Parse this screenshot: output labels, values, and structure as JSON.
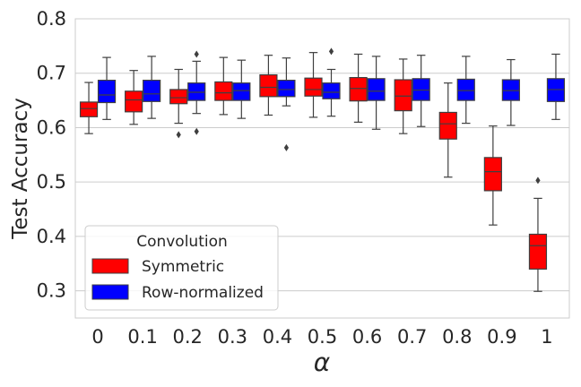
{
  "chart_data": {
    "type": "boxplot",
    "title": "",
    "xlabel": "α",
    "ylabel": "Test Accuracy",
    "ylim": [
      0.25,
      0.8
    ],
    "yticks": [
      0.3,
      0.4,
      0.5,
      0.6,
      0.7,
      0.8
    ],
    "ytick_labels": [
      "0.3",
      "0.4",
      "0.5",
      "0.6",
      "0.7",
      "0.8"
    ],
    "grid": "horizontal",
    "categories": [
      "0",
      "0.1",
      "0.2",
      "0.3",
      "0.4",
      "0.5",
      "0.6",
      "0.7",
      "0.8",
      "0.9",
      "1"
    ],
    "legend": {
      "title": "Convolution",
      "placement": "lower-left"
    },
    "series": [
      {
        "name": "Symmetric",
        "color": "#ff0000",
        "boxes": [
          {
            "category": "0",
            "whislo": 0.589,
            "q1": 0.62,
            "med": 0.635,
            "q3": 0.647,
            "whishi": 0.683,
            "fliers": []
          },
          {
            "category": "0.1",
            "whislo": 0.606,
            "q1": 0.629,
            "med": 0.651,
            "q3": 0.667,
            "whishi": 0.705,
            "fliers": []
          },
          {
            "category": "0.2",
            "whislo": 0.608,
            "q1": 0.644,
            "med": 0.655,
            "q3": 0.67,
            "whishi": 0.707,
            "fliers": [
              0.587
            ]
          },
          {
            "category": "0.3",
            "whislo": 0.624,
            "q1": 0.65,
            "med": 0.664,
            "q3": 0.684,
            "whishi": 0.729,
            "fliers": []
          },
          {
            "category": "0.4",
            "whislo": 0.623,
            "q1": 0.657,
            "med": 0.674,
            "q3": 0.697,
            "whishi": 0.733,
            "fliers": []
          },
          {
            "category": "0.5",
            "whislo": 0.619,
            "q1": 0.658,
            "med": 0.67,
            "q3": 0.691,
            "whishi": 0.738,
            "fliers": []
          },
          {
            "category": "0.6",
            "whislo": 0.61,
            "q1": 0.649,
            "med": 0.672,
            "q3": 0.692,
            "whishi": 0.735,
            "fliers": []
          },
          {
            "category": "0.7",
            "whislo": 0.589,
            "q1": 0.631,
            "med": 0.658,
            "q3": 0.688,
            "whishi": 0.726,
            "fliers": []
          },
          {
            "category": "0.8",
            "whislo": 0.509,
            "q1": 0.579,
            "med": 0.607,
            "q3": 0.628,
            "whishi": 0.682,
            "fliers": []
          },
          {
            "category": "0.9",
            "whislo": 0.421,
            "q1": 0.484,
            "med": 0.519,
            "q3": 0.545,
            "whishi": 0.603,
            "fliers": []
          },
          {
            "category": "1",
            "whislo": 0.299,
            "q1": 0.34,
            "med": 0.383,
            "q3": 0.404,
            "whishi": 0.47,
            "fliers": [
              0.503
            ]
          }
        ]
      },
      {
        "name": "Row-normalized",
        "color": "#0000ff",
        "boxes": [
          {
            "category": "0",
            "whislo": 0.615,
            "q1": 0.646,
            "med": 0.66,
            "q3": 0.687,
            "whishi": 0.729,
            "fliers": []
          },
          {
            "category": "0.1",
            "whislo": 0.617,
            "q1": 0.648,
            "med": 0.662,
            "q3": 0.687,
            "whishi": 0.731,
            "fliers": []
          },
          {
            "category": "0.2",
            "whislo": 0.626,
            "q1": 0.65,
            "med": 0.665,
            "q3": 0.682,
            "whishi": 0.722,
            "fliers": [
              0.735,
              0.593
            ]
          },
          {
            "category": "0.3",
            "whislo": 0.617,
            "q1": 0.65,
            "med": 0.668,
            "q3": 0.682,
            "whishi": 0.724,
            "fliers": []
          },
          {
            "category": "0.4",
            "whislo": 0.64,
            "q1": 0.657,
            "med": 0.67,
            "q3": 0.687,
            "whishi": 0.728,
            "fliers": [
              0.563
            ]
          },
          {
            "category": "0.5",
            "whislo": 0.621,
            "q1": 0.653,
            "med": 0.665,
            "q3": 0.682,
            "whishi": 0.707,
            "fliers": [
              0.74
            ]
          },
          {
            "category": "0.6",
            "whislo": 0.597,
            "q1": 0.65,
            "med": 0.667,
            "q3": 0.69,
            "whishi": 0.731,
            "fliers": []
          },
          {
            "category": "0.7",
            "whislo": 0.602,
            "q1": 0.65,
            "med": 0.669,
            "q3": 0.69,
            "whishi": 0.733,
            "fliers": []
          },
          {
            "category": "0.8",
            "whislo": 0.608,
            "q1": 0.65,
            "med": 0.668,
            "q3": 0.689,
            "whishi": 0.731,
            "fliers": []
          },
          {
            "category": "0.9",
            "whislo": 0.604,
            "q1": 0.65,
            "med": 0.668,
            "q3": 0.688,
            "whishi": 0.725,
            "fliers": []
          },
          {
            "category": "1",
            "whislo": 0.615,
            "q1": 0.648,
            "med": 0.67,
            "q3": 0.69,
            "whishi": 0.735,
            "fliers": []
          }
        ]
      }
    ]
  }
}
